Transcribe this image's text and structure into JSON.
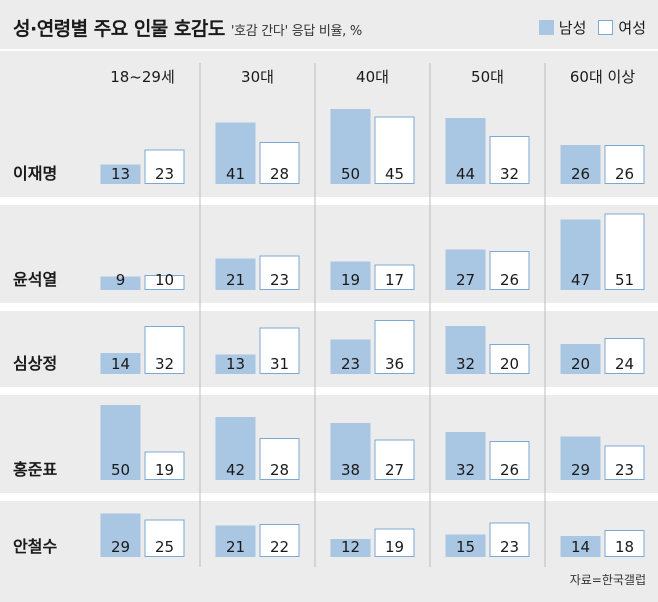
{
  "title": "성·연령별 주요 인물 호감도",
  "subtitle": "'호감 간다' 응답 비율, %",
  "legend": {
    "male": "남성",
    "female": "여성"
  },
  "source": "자료=한국갤럽",
  "colors": {
    "male": "#a9c6e2",
    "female": "#ffffff",
    "female_border": "#7aa8d4",
    "background": "#ececec"
  },
  "chart_data": {
    "type": "bar",
    "title": "성·연령별 주요 인물 호감도",
    "subtitle": "'호감 간다' 응답 비율, %",
    "age_groups": [
      "18~29세",
      "30대",
      "40대",
      "50대",
      "60대 이상"
    ],
    "people": [
      "이재명",
      "윤석열",
      "심상정",
      "홍준표",
      "안철수"
    ],
    "series": [
      {
        "name": "남성",
        "values": [
          [
            13,
            41,
            50,
            44,
            26
          ],
          [
            9,
            21,
            19,
            27,
            47
          ],
          [
            14,
            13,
            23,
            32,
            20
          ],
          [
            50,
            42,
            38,
            32,
            29
          ],
          [
            29,
            21,
            12,
            15,
            14
          ]
        ]
      },
      {
        "name": "여성",
        "values": [
          [
            23,
            28,
            45,
            32,
            26
          ],
          [
            10,
            23,
            17,
            26,
            51
          ],
          [
            32,
            31,
            36,
            20,
            24
          ],
          [
            19,
            28,
            27,
            26,
            23
          ],
          [
            25,
            22,
            19,
            23,
            18
          ]
        ]
      }
    ]
  }
}
